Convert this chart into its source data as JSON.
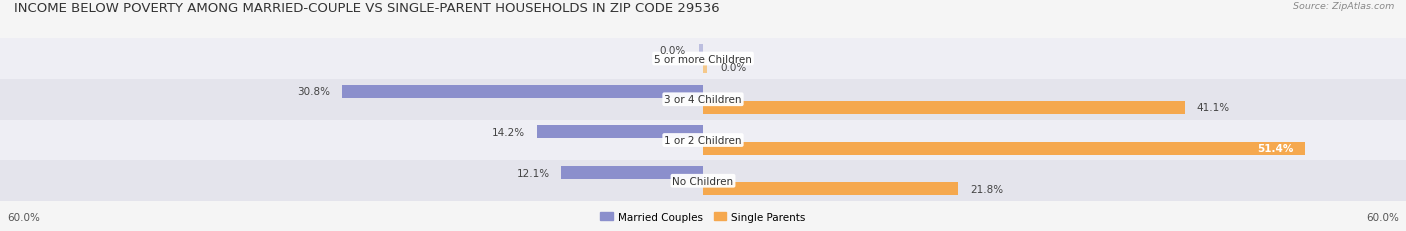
{
  "title": "INCOME BELOW POVERTY AMONG MARRIED-COUPLE VS SINGLE-PARENT HOUSEHOLDS IN ZIP CODE 29536",
  "source": "Source: ZipAtlas.com",
  "categories": [
    "No Children",
    "1 or 2 Children",
    "3 or 4 Children",
    "5 or more Children"
  ],
  "married_values": [
    12.1,
    14.2,
    30.8,
    0.0
  ],
  "single_values": [
    21.8,
    51.4,
    41.1,
    0.0
  ],
  "xlim": 60.0,
  "married_color": "#8B8FCC",
  "single_color": "#F5A84E",
  "single_color_light": "#F5C88A",
  "row_bg_colors": [
    "#EEEEF4",
    "#E4E4EC"
  ],
  "legend_married": "Married Couples",
  "legend_single": "Single Parents",
  "title_fontsize": 9.5,
  "cat_fontsize": 7.5,
  "value_fontsize": 7.5,
  "axis_label_fontsize": 7.5,
  "bar_height": 0.32,
  "bar_gap": 0.08
}
